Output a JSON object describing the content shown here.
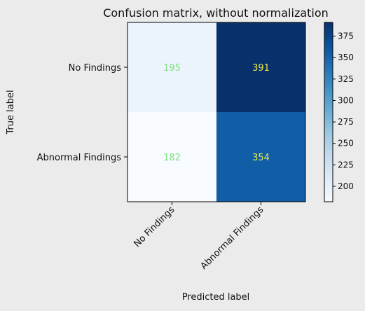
{
  "chart_data": {
    "type": "heatmap",
    "title": "Confusion matrix, without normalization",
    "xlabel": "Predicted label",
    "ylabel": "True label",
    "row_labels": [
      "No Findings",
      "Abnormal Findings"
    ],
    "col_labels": [
      "No Findings",
      "Abnormal Findings"
    ],
    "values": [
      [
        195,
        391
      ],
      [
        182,
        354
      ]
    ],
    "colormap": "Blues",
    "colorbar": {
      "range": [
        182,
        391
      ],
      "ticks": [
        200,
        225,
        250,
        275,
        300,
        325,
        350,
        375
      ]
    },
    "colors": {
      "text_on_light": "#7fe07f",
      "text_on_dark": "#e8e84a"
    }
  }
}
